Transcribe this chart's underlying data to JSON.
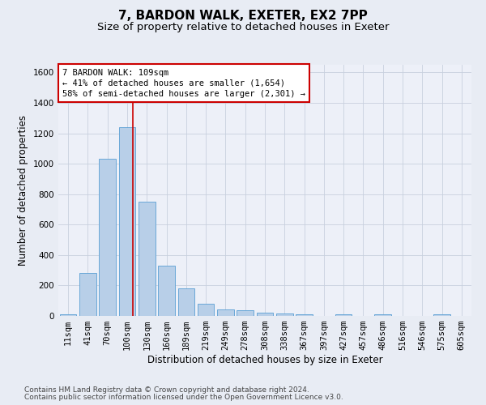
{
  "title": "7, BARDON WALK, EXETER, EX2 7PP",
  "subtitle": "Size of property relative to detached houses in Exeter",
  "xlabel": "Distribution of detached houses by size in Exeter",
  "ylabel": "Number of detached properties",
  "footer_line1": "Contains HM Land Registry data © Crown copyright and database right 2024.",
  "footer_line2": "Contains public sector information licensed under the Open Government Licence v3.0.",
  "bar_labels": [
    "11sqm",
    "41sqm",
    "70sqm",
    "100sqm",
    "130sqm",
    "160sqm",
    "189sqm",
    "219sqm",
    "249sqm",
    "278sqm",
    "308sqm",
    "338sqm",
    "367sqm",
    "397sqm",
    "427sqm",
    "457sqm",
    "486sqm",
    "516sqm",
    "546sqm",
    "575sqm",
    "605sqm"
  ],
  "bar_values": [
    10,
    280,
    1035,
    1240,
    750,
    330,
    180,
    80,
    45,
    38,
    22,
    15,
    8,
    0,
    12,
    0,
    10,
    0,
    0,
    10,
    0
  ],
  "bar_color": "#b8cfe8",
  "bar_edge_color": "#5a9fd4",
  "annotation_box_text": "7 BARDON WALK: 109sqm\n← 41% of detached houses are smaller (1,654)\n58% of semi-detached houses are larger (2,301) →",
  "annotation_box_color": "#ffffff",
  "annotation_box_edge_color": "#cc0000",
  "vline_color": "#cc0000",
  "ylim": [
    0,
    1650
  ],
  "yticks": [
    0,
    200,
    400,
    600,
    800,
    1000,
    1200,
    1400,
    1600
  ],
  "grid_color": "#c8d0de",
  "bg_color": "#e8ecf4",
  "plot_bg_color": "#edf0f8",
  "title_fontsize": 11,
  "subtitle_fontsize": 9.5,
  "axis_label_fontsize": 8.5,
  "tick_fontsize": 7.5,
  "footer_fontsize": 6.5,
  "ann_fontsize": 7.5
}
